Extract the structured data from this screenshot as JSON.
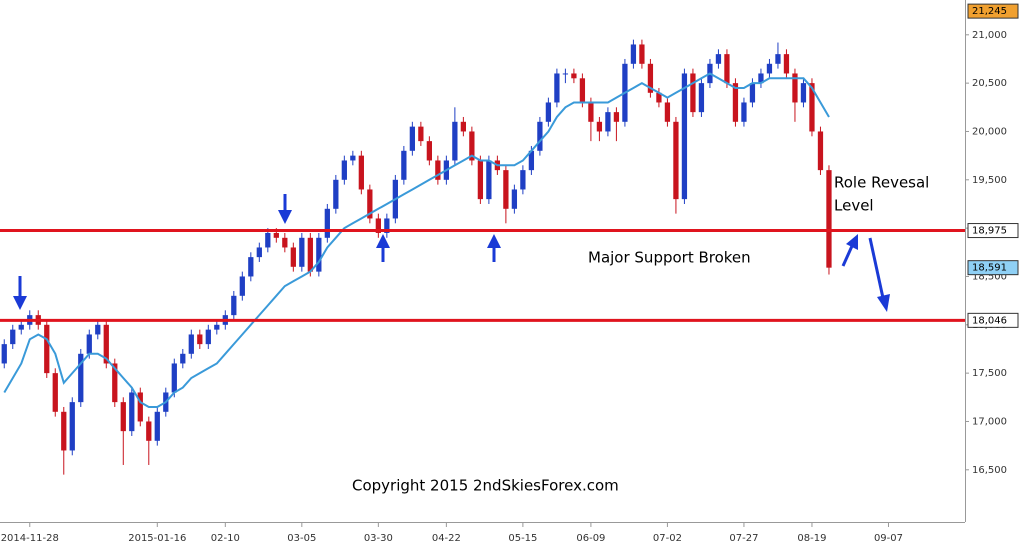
{
  "chart_data": {
    "type": "candlestick",
    "up_color": "#1f3fc4",
    "down_color": "#c8141e",
    "xlim": [
      -0.5,
      113
    ],
    "ylim": [
      15960,
      21360
    ],
    "xticks": [
      {
        "value": 3,
        "label": "2014-11-28"
      },
      {
        "value": 18,
        "label": "2015-01-16"
      },
      {
        "value": 26,
        "label": "02-10"
      },
      {
        "value": 35,
        "label": "03-05"
      },
      {
        "value": 44,
        "label": "03-30"
      },
      {
        "value": 52,
        "label": "04-22"
      },
      {
        "value": 61,
        "label": "05-15"
      },
      {
        "value": 69,
        "label": "06-09"
      },
      {
        "value": 78,
        "label": "07-02"
      },
      {
        "value": 87,
        "label": "07-27"
      },
      {
        "value": 95,
        "label": "08-19"
      },
      {
        "value": 104,
        "label": "09-07"
      }
    ],
    "yticks": [
      {
        "value": 16500,
        "label": "16,500"
      },
      {
        "value": 17000,
        "label": "17,000"
      },
      {
        "value": 17500,
        "label": "17,500"
      },
      {
        "value": 18000,
        "label": "18,000"
      },
      {
        "value": 18500,
        "label": "18,500"
      },
      {
        "value": 19000,
        "label": "19,000"
      },
      {
        "value": 19500,
        "label": "19,500"
      },
      {
        "value": 20000,
        "label": "20,000"
      },
      {
        "value": 20500,
        "label": "20,500"
      },
      {
        "value": 21000,
        "label": "21,000"
      }
    ],
    "ohlc": [
      [
        17600,
        17850,
        17550,
        17800
      ],
      [
        17800,
        18000,
        17750,
        17950
      ],
      [
        17950,
        18060,
        17900,
        18000
      ],
      [
        18000,
        18150,
        17950,
        18100
      ],
      [
        18100,
        18150,
        17950,
        18000
      ],
      [
        18000,
        18050,
        17450,
        17500
      ],
      [
        17500,
        17550,
        17050,
        17100
      ],
      [
        17100,
        17150,
        16450,
        16700
      ],
      [
        16700,
        17250,
        16650,
        17200
      ],
      [
        17200,
        17750,
        17150,
        17700
      ],
      [
        17700,
        17950,
        17650,
        17900
      ],
      [
        17900,
        18050,
        17850,
        18000
      ],
      [
        18000,
        18050,
        17550,
        17600
      ],
      [
        17600,
        17650,
        17150,
        17200
      ],
      [
        17200,
        17250,
        16550,
        16900
      ],
      [
        16900,
        17350,
        16850,
        17300
      ],
      [
        17300,
        17350,
        16950,
        17000
      ],
      [
        17000,
        17050,
        16550,
        16800
      ],
      [
        16800,
        17150,
        16750,
        17100
      ],
      [
        17100,
        17350,
        17050,
        17300
      ],
      [
        17300,
        17650,
        17250,
        17600
      ],
      [
        17600,
        17750,
        17550,
        17700
      ],
      [
        17700,
        17950,
        17650,
        17900
      ],
      [
        17900,
        17950,
        17750,
        17800
      ],
      [
        17800,
        18000,
        17750,
        17950
      ],
      [
        17950,
        18050,
        17900,
        18000
      ],
      [
        18000,
        18150,
        17950,
        18100
      ],
      [
        18100,
        18350,
        18050,
        18300
      ],
      [
        18300,
        18550,
        18250,
        18500
      ],
      [
        18500,
        18750,
        18450,
        18700
      ],
      [
        18700,
        18850,
        18650,
        18800
      ],
      [
        18800,
        19000,
        18750,
        18950
      ],
      [
        18950,
        19000,
        18850,
        18900
      ],
      [
        18900,
        18950,
        18750,
        18800
      ],
      [
        18800,
        18850,
        18550,
        18600
      ],
      [
        18600,
        18950,
        18550,
        18900
      ],
      [
        18900,
        18950,
        18500,
        18550
      ],
      [
        18550,
        18950,
        18500,
        18900
      ],
      [
        18900,
        19250,
        18850,
        19200
      ],
      [
        19200,
        19550,
        19150,
        19500
      ],
      [
        19500,
        19750,
        19450,
        19700
      ],
      [
        19700,
        19800,
        19650,
        19750
      ],
      [
        19750,
        19800,
        19350,
        19400
      ],
      [
        19400,
        19450,
        19050,
        19100
      ],
      [
        19100,
        19150,
        18900,
        18950
      ],
      [
        18950,
        19150,
        18900,
        19100
      ],
      [
        19100,
        19550,
        19050,
        19500
      ],
      [
        19500,
        19850,
        19450,
        19800
      ],
      [
        19800,
        20100,
        19750,
        20050
      ],
      [
        20050,
        20100,
        19850,
        19900
      ],
      [
        19900,
        19950,
        19650,
        19700
      ],
      [
        19700,
        19750,
        19450,
        19500
      ],
      [
        19500,
        19750,
        19450,
        19700
      ],
      [
        19700,
        20250,
        19650,
        20100
      ],
      [
        20100,
        20150,
        19950,
        20000
      ],
      [
        20000,
        20050,
        19650,
        19700
      ],
      [
        19700,
        19750,
        19250,
        19300
      ],
      [
        19300,
        19750,
        19250,
        19700
      ],
      [
        19700,
        19750,
        19550,
        19600
      ],
      [
        19600,
        19650,
        19050,
        19200
      ],
      [
        19200,
        19450,
        19150,
        19400
      ],
      [
        19400,
        19650,
        19350,
        19600
      ],
      [
        19600,
        19850,
        19550,
        19800
      ],
      [
        19800,
        20150,
        19750,
        20100
      ],
      [
        20100,
        20350,
        20050,
        20300
      ],
      [
        20300,
        20650,
        20250,
        20600
      ],
      [
        20600,
        20650,
        20500,
        20600
      ],
      [
        20600,
        20650,
        20500,
        20550
      ],
      [
        20550,
        20600,
        20250,
        20300
      ],
      [
        20300,
        20350,
        19900,
        20100
      ],
      [
        20100,
        20150,
        19900,
        20000
      ],
      [
        20000,
        20250,
        19950,
        20200
      ],
      [
        20200,
        20250,
        19900,
        20100
      ],
      [
        20100,
        20750,
        20050,
        20700
      ],
      [
        20700,
        20950,
        20650,
        20900
      ],
      [
        20900,
        20950,
        20650,
        20700
      ],
      [
        20700,
        20750,
        20350,
        20400
      ],
      [
        20400,
        20450,
        20250,
        20300
      ],
      [
        20300,
        20350,
        20050,
        20100
      ],
      [
        20100,
        20150,
        19150,
        19300
      ],
      [
        19300,
        20650,
        19250,
        20600
      ],
      [
        20600,
        20650,
        20150,
        20200
      ],
      [
        20200,
        20550,
        20150,
        20500
      ],
      [
        20500,
        20750,
        20450,
        20700
      ],
      [
        20700,
        20850,
        20650,
        20800
      ],
      [
        20800,
        20850,
        20450,
        20500
      ],
      [
        20500,
        20550,
        20050,
        20100
      ],
      [
        20100,
        20350,
        20050,
        20300
      ],
      [
        20300,
        20550,
        20250,
        20500
      ],
      [
        20500,
        20650,
        20450,
        20600
      ],
      [
        20600,
        20750,
        20550,
        20700
      ],
      [
        20700,
        20920,
        20650,
        20800
      ],
      [
        20800,
        20850,
        20550,
        20600
      ],
      [
        20600,
        20650,
        20100,
        20300
      ],
      [
        20300,
        20550,
        20250,
        20500
      ],
      [
        20500,
        20550,
        19950,
        20000
      ],
      [
        20000,
        20050,
        19550,
        19600
      ],
      [
        19600,
        19650,
        18520,
        18591
      ]
    ],
    "ma": {
      "color": "#3a9ad9",
      "values": [
        17300,
        17450,
        17600,
        17850,
        17900,
        17850,
        17700,
        17400,
        17500,
        17600,
        17700,
        17700,
        17650,
        17550,
        17450,
        17350,
        17200,
        17150,
        17150,
        17200,
        17300,
        17350,
        17450,
        17500,
        17550,
        17600,
        17700,
        17800,
        17900,
        18000,
        18100,
        18200,
        18300,
        18400,
        18450,
        18500,
        18550,
        18650,
        18800,
        18900,
        19000,
        19050,
        19100,
        19150,
        19200,
        19250,
        19300,
        19350,
        19400,
        19450,
        19500,
        19550,
        19600,
        19650,
        19700,
        19750,
        19700,
        19700,
        19650,
        19650,
        19650,
        19700,
        19800,
        19900,
        20000,
        20150,
        20250,
        20300,
        20300,
        20300,
        20300,
        20300,
        20350,
        20400,
        20450,
        20500,
        20450,
        20400,
        20350,
        20400,
        20450,
        20500,
        20550,
        20600,
        20550,
        20500,
        20450,
        20450,
        20500,
        20500,
        20550,
        20550,
        20550,
        20550,
        20550,
        20450,
        20300,
        20150
      ]
    },
    "levels": [
      {
        "value": 18975,
        "color": "#e0141e"
      },
      {
        "value": 18046,
        "color": "#e0141e"
      }
    ],
    "price_markers": [
      {
        "value": 21245,
        "label": "21,245",
        "color": "#f0a030"
      },
      {
        "value": 18975,
        "label": "18,975",
        "color": "#ffffff"
      },
      {
        "value": 18591,
        "label": "18,591",
        "color": "#8fd0f5"
      },
      {
        "value": 18046,
        "label": "18,046",
        "color": "#ffffff"
      }
    ],
    "annotations": [
      "Role Revesal",
      "Level",
      "Major Support Broken",
      "Copyright 2015 2ndSkiesForex.com"
    ]
  }
}
